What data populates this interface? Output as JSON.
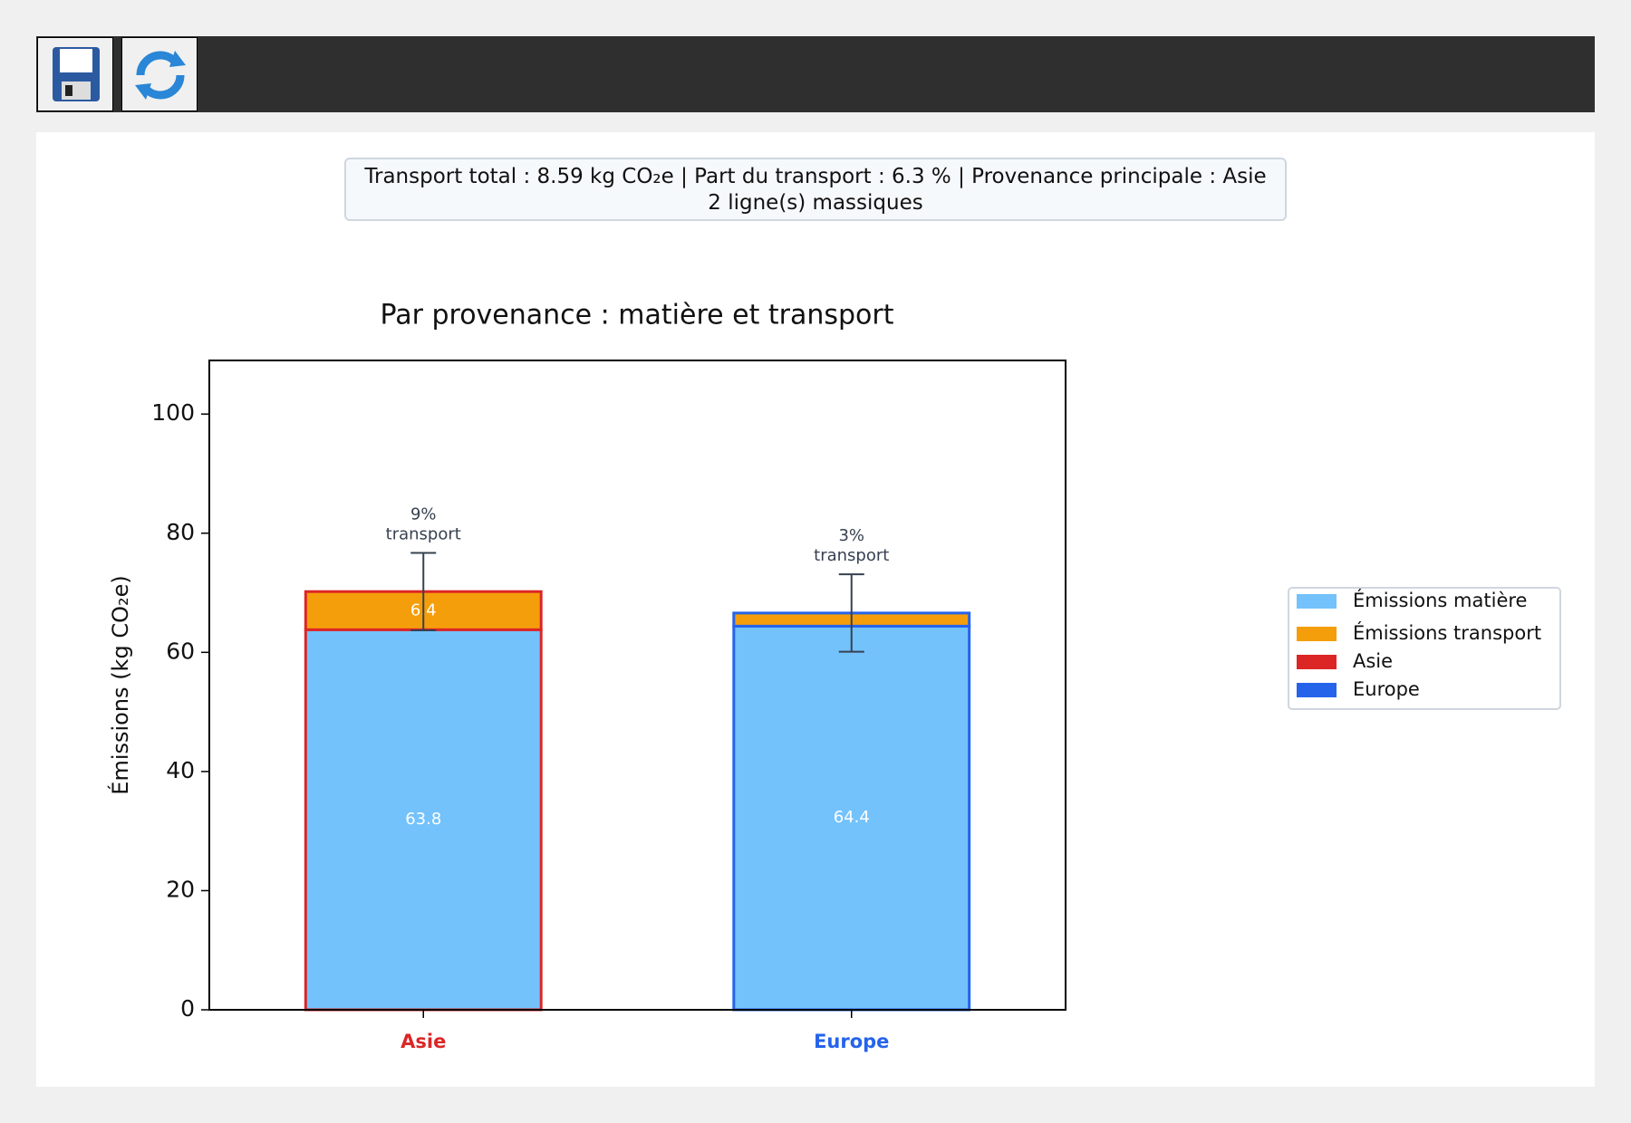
{
  "info": {
    "lines": [
      "Transport total : 8.59 kg CO₂e | Part du transport : 6.3 % | Provenance principale : Asie",
      "2 ligne(s) massiques"
    ]
  },
  "chart_data": {
    "type": "stacked-bar",
    "title": "Par provenance : matière et transport",
    "y_label": "Émissions (kg CO₂e)",
    "categories": [
      "Asie",
      "Europe"
    ],
    "category_colors": [
      "#dc2626",
      "#2563eb"
    ],
    "series": [
      {
        "name": "Émissions matière",
        "color": "#73c2fb",
        "values": [
          63.8,
          64.4
        ],
        "value_labels": [
          "63.8",
          "64.4"
        ]
      },
      {
        "name": "Émissions transport",
        "color": "#f59e0b",
        "values": [
          6.4,
          2.2
        ],
        "value_labels": [
          "6.4",
          null
        ]
      }
    ],
    "edge_legend": [
      {
        "name": "Asie",
        "color": "#dc2626"
      },
      {
        "name": "Europe",
        "color": "#2563eb"
      }
    ],
    "errors": [
      6.5,
      6.5
    ],
    "annotations": [
      [
        "9%",
        "transport"
      ],
      [
        "3%",
        "transport"
      ]
    ],
    "ylim": [
      0,
      109
    ],
    "yticks": [
      0,
      20,
      40,
      60,
      80,
      100
    ],
    "legend": "right"
  }
}
